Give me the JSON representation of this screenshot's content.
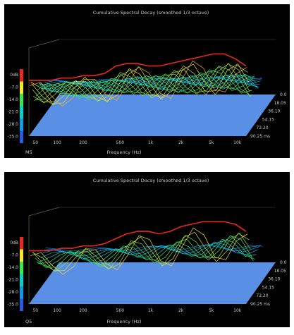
{
  "chart_data": [
    {
      "type": "waterfall-3d",
      "title": "Cumulative Spectral Decay (smoothed 1/3 octave)",
      "panel_label": "M5",
      "xlabel": "Frequency (Hz)",
      "x_ticks": [
        "50",
        "100",
        "200",
        "500",
        "1k",
        "2k",
        "5k",
        "10k"
      ],
      "y_ticks": [
        "0dB",
        "-7.0",
        "-14.0",
        "-21.0",
        "-28.0",
        "-35.0"
      ],
      "time_ticks": [
        "0.0",
        "18.05",
        "36.10",
        "54.15",
        "72.20",
        "90.25 ms"
      ],
      "zlim": [
        -35,
        0
      ],
      "slices": 20,
      "front_response_db": [
        -12,
        -12,
        -12,
        -11,
        -11,
        -10,
        -10,
        -9,
        -6,
        -5,
        -5,
        -6,
        -6,
        -5,
        -4,
        -3,
        -2,
        -1,
        -1,
        -3,
        -6
      ]
    },
    {
      "type": "waterfall-3d",
      "title": "Cumulative Spectral Decay (smoothed 1/3 octave)",
      "panel_label": "Q5",
      "xlabel": "Frequency (Hz)",
      "x_ticks": [
        "50",
        "100",
        "200",
        "500",
        "1k",
        "2k",
        "5k",
        "10k"
      ],
      "y_ticks": [
        "0dB",
        "-7.0",
        "-14.0",
        "-21.0",
        "-28.0",
        "-35.0"
      ],
      "time_ticks": [
        "0.0",
        "18.05",
        "36.10",
        "54.15",
        "72.20",
        "90.25 ms"
      ],
      "zlim": [
        -35,
        0
      ],
      "slices": 12,
      "front_response_db": [
        -13,
        -13,
        -13,
        -12,
        -12,
        -11,
        -11,
        -10,
        -8,
        -6,
        -5,
        -5,
        -6,
        -5,
        -3,
        -2,
        -1,
        -1,
        -1,
        -2,
        -5
      ]
    }
  ]
}
